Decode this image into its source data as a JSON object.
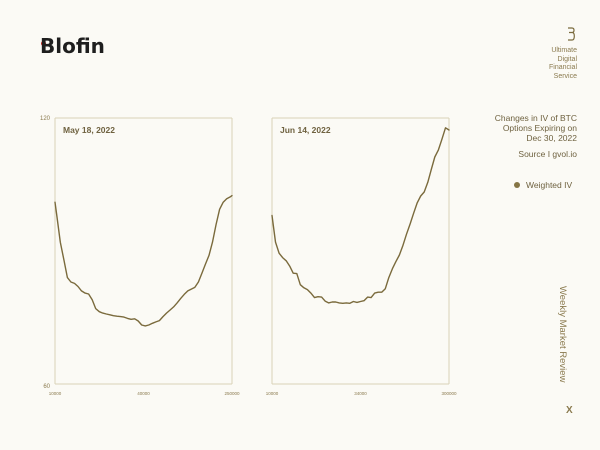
{
  "brand": {
    "logo_text": "Blofin",
    "tagline": [
      "Ultimate",
      "Digital",
      "Financial",
      "Service"
    ]
  },
  "sidebar": {
    "title_lines": [
      "Changes in IV of BTC",
      "Options Expiring on",
      "Dec 30, 2022"
    ],
    "source": "Source I gvol.io",
    "legend_label": "Weighted IV",
    "vertical_label": "Weekly Market Review",
    "close_label": "X"
  },
  "colors": {
    "line": "#7a6a3c",
    "frame": "#d9d2b8",
    "accent_red": "#d8251d"
  },
  "chart_data": [
    {
      "type": "line",
      "title": "May 18, 2022",
      "ylim": [
        60,
        120
      ],
      "ytick_labels": [
        "120",
        "60"
      ],
      "xtick_labels": [
        "10000",
        "40000",
        "250000"
      ],
      "series": [
        {
          "name": "Weighted IV",
          "x": [
            0,
            1,
            3,
            5,
            7,
            9,
            11,
            13,
            15,
            17,
            19,
            21,
            23,
            25,
            27,
            29,
            31,
            33,
            35,
            37,
            39,
            41,
            43,
            45,
            47,
            49,
            51,
            53,
            55,
            57,
            59,
            61,
            63,
            65,
            67,
            69,
            71,
            73,
            75,
            77,
            79,
            81,
            83,
            85,
            87,
            89,
            91,
            93,
            95,
            97,
            99,
            100
          ],
          "y": [
            101,
            98,
            92,
            88,
            84,
            83,
            82.7,
            82,
            81,
            80.5,
            80.3,
            79,
            77,
            76.3,
            76,
            75.8,
            75.6,
            75.4,
            75.3,
            75.2,
            75.1,
            74.8,
            74.6,
            74.7,
            74.2,
            73.3,
            73.1,
            73.3,
            73.7,
            74,
            74.3,
            75.2,
            76,
            76.7,
            77.4,
            78.3,
            79.3,
            80.2,
            81,
            81.4,
            81.8,
            83,
            85,
            87,
            89,
            92,
            96,
            99.4,
            101,
            101.8,
            102.2,
            102.5
          ]
        }
      ]
    },
    {
      "type": "line",
      "title": "Jun 14, 2022",
      "ylim": [
        60,
        120
      ],
      "ytick_labels": [],
      "xtick_labels": [
        "10000",
        "34000",
        "300000"
      ],
      "series": [
        {
          "name": "Weighted IV",
          "x": [
            0,
            2,
            4,
            6,
            8,
            10,
            12,
            14,
            16,
            18,
            20,
            22,
            24,
            26,
            28,
            30,
            32,
            34,
            36,
            38,
            40,
            42,
            44,
            46,
            48,
            50,
            52,
            54,
            56,
            58,
            60,
            62,
            64,
            66,
            68,
            70,
            72,
            74,
            76,
            78,
            80,
            82,
            84,
            86,
            88,
            90,
            92,
            94,
            96,
            98,
            100
          ],
          "y": [
            98,
            92,
            89.5,
            88.5,
            87.8,
            86.6,
            85,
            84.9,
            82.4,
            81.7,
            81.3,
            80.5,
            79.5,
            79.7,
            79.6,
            78.7,
            78.3,
            78.5,
            78.5,
            78.3,
            78.2,
            78.3,
            78.2,
            78.6,
            78.4,
            78.6,
            78.8,
            79.6,
            79.5,
            80.5,
            80.7,
            80.7,
            81.5,
            84,
            86,
            87.6,
            89.1,
            91.3,
            93.8,
            96.1,
            98.5,
            100.8,
            102.4,
            103.3,
            105.5,
            108.4,
            111.2,
            112.8,
            115.2,
            117.8,
            117.3
          ]
        }
      ]
    }
  ]
}
